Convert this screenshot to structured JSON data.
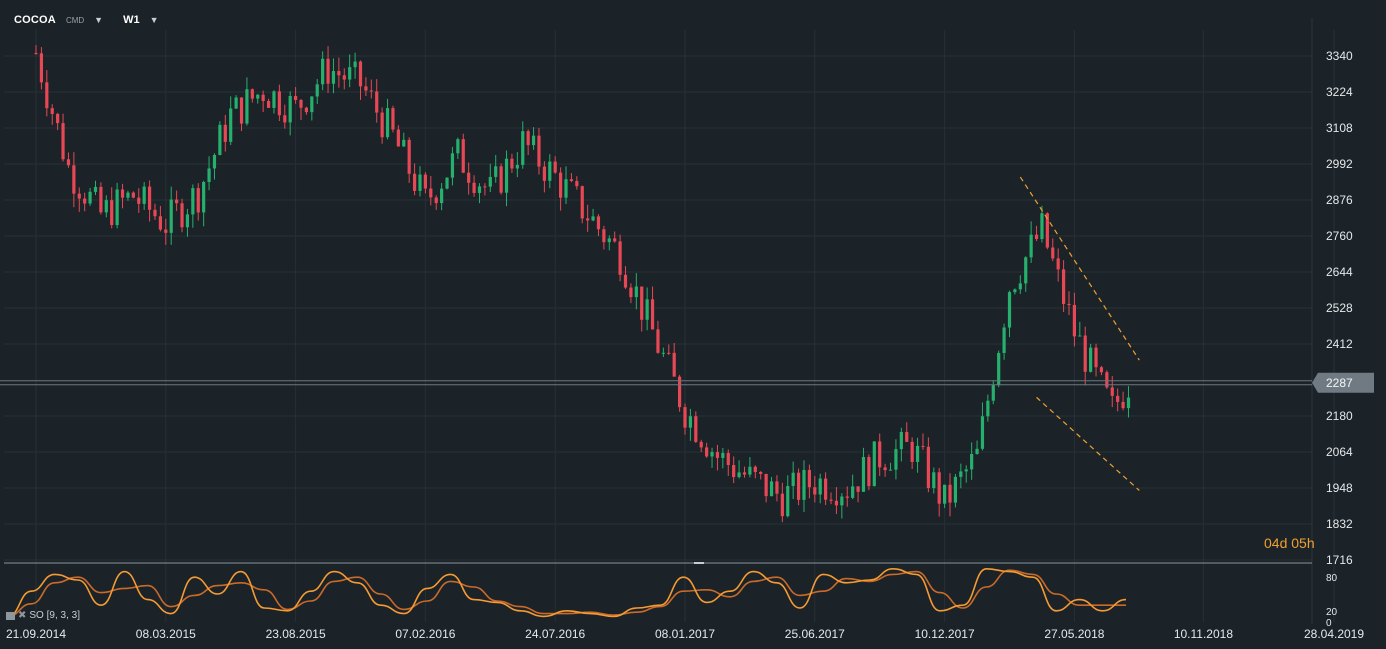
{
  "header": {
    "symbol": "COCOA",
    "exchange": "CMD",
    "timeframe": "W1"
  },
  "colors": {
    "background": "#1b2328",
    "bull": "#26b06e",
    "bear": "#e84855",
    "grid": "#263036",
    "trend": "#f0a030",
    "so_k": "#f59b33",
    "so_d": "#c96a2a"
  },
  "countdown": "04d 05h",
  "indicator": {
    "label": "SO [9, 3, 3]"
  },
  "chart_data": {
    "type": "candlestick",
    "symbol": "COCOA",
    "timeframe": "W1",
    "y_ticks": [
      "3340",
      "3224",
      "3108",
      "2992",
      "2876",
      "2760",
      "2644",
      "2528",
      "2412",
      "2287",
      "2180",
      "2064",
      "1948",
      "1832",
      "1716"
    ],
    "y_range": [
      1716,
      3340
    ],
    "x_ticks": [
      "21.09.2014",
      "08.03.2015",
      "23.08.2015",
      "07.02.2016",
      "24.07.2016",
      "08.01.2017",
      "25.06.2017",
      "10.12.2017",
      "27.05.2018",
      "10.11.2018",
      "28.04.2019"
    ],
    "current_price": "2287",
    "close_path": [
      [
        "21.09.2014",
        3350
      ],
      [
        "02.11.2014",
        2980
      ],
      [
        "14.12.2014",
        2830
      ],
      [
        "25.01.2015",
        2890
      ],
      [
        "08.03.2015",
        2800
      ],
      [
        "19.04.2015",
        2900
      ],
      [
        "31.05.2015",
        3150
      ],
      [
        "12.07.2015",
        3230
      ],
      [
        "23.08.2015",
        3170
      ],
      [
        "04.10.2015",
        3300
      ],
      [
        "15.11.2015",
        3250
      ],
      [
        "27.12.2015",
        3080
      ],
      [
        "07.02.2016",
        2870
      ],
      [
        "20.03.2016",
        3020
      ],
      [
        "01.05.2016",
        2900
      ],
      [
        "12.06.2016",
        3060
      ],
      [
        "24.07.2016",
        2950
      ],
      [
        "04.09.2016",
        2830
      ],
      [
        "16.10.2016",
        2700
      ],
      [
        "27.11.2016",
        2450
      ],
      [
        "08.01.2017",
        2200
      ],
      [
        "19.02.2017",
        2050
      ],
      [
        "02.04.2017",
        1980
      ],
      [
        "14.05.2017",
        1920
      ],
      [
        "25.06.2017",
        1970
      ],
      [
        "06.08.2017",
        1950
      ],
      [
        "17.09.2017",
        2050
      ],
      [
        "29.10.2017",
        2080
      ],
      [
        "10.12.2017",
        1900
      ],
      [
        "21.01.2018",
        2050
      ],
      [
        "04.03.2018",
        2600
      ],
      [
        "15.04.2018",
        2780
      ],
      [
        "27.05.2018",
        2450
      ],
      [
        "24.06.2018",
        2300
      ],
      [
        "15.07.2018",
        2200
      ],
      [
        "05.08.2018",
        2287
      ]
    ],
    "trend_lines": [
      {
        "from": [
          "18.03.2018",
          2950
        ],
        "to": [
          "19.08.2018",
          2360
        ]
      },
      {
        "from": [
          "08.04.2018",
          2240
        ],
        "to": [
          "19.08.2018",
          1940
        ]
      }
    ],
    "oscillator": {
      "name": "SO [9, 3, 3]",
      "y_ticks": [
        "80",
        "20",
        "0"
      ],
      "k_values": [
        10,
        55,
        85,
        75,
        30,
        90,
        40,
        15,
        80,
        50,
        90,
        25,
        20,
        55,
        90,
        70,
        30,
        15,
        60,
        85,
        40,
        35,
        20,
        10,
        20,
        15,
        10,
        25,
        30,
        80,
        35,
        55,
        90,
        70,
        25,
        85,
        70,
        75,
        95,
        85,
        20,
        30,
        95,
        90,
        80,
        20,
        40,
        20,
        40
      ]
    }
  }
}
